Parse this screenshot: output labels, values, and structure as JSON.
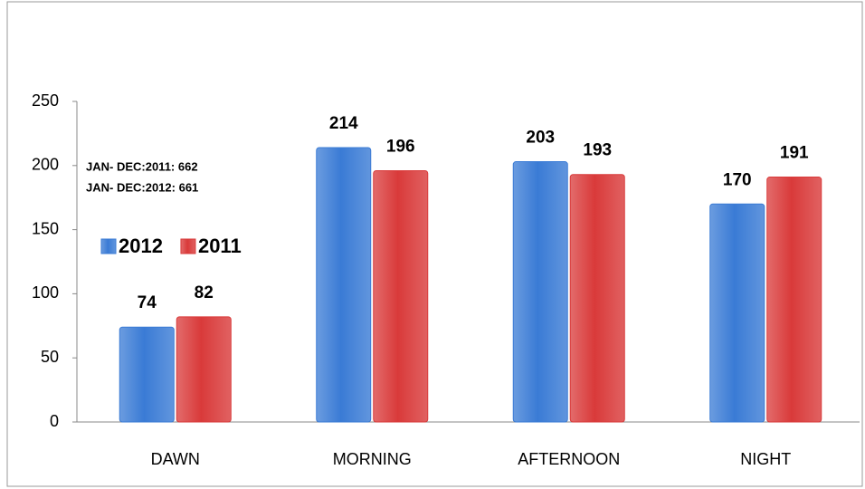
{
  "chart_data": {
    "type": "bar",
    "categories": [
      "DAWN",
      "MORNING",
      "AFTERNOON",
      "NIGHT"
    ],
    "series": [
      {
        "name": "2012",
        "color": "#3a7bd5",
        "values": [
          74,
          214,
          203,
          170
        ]
      },
      {
        "name": "2011",
        "color": "#d93a3a",
        "values": [
          82,
          196,
          193,
          191
        ]
      }
    ],
    "annotations": [
      "JAN- DEC:2011: 662",
      "JAN- DEC:2012: 661"
    ],
    "ylim": [
      0,
      250
    ],
    "yticks": [
      0,
      50,
      100,
      150,
      200,
      250
    ],
    "grid": false,
    "legend": "left"
  }
}
